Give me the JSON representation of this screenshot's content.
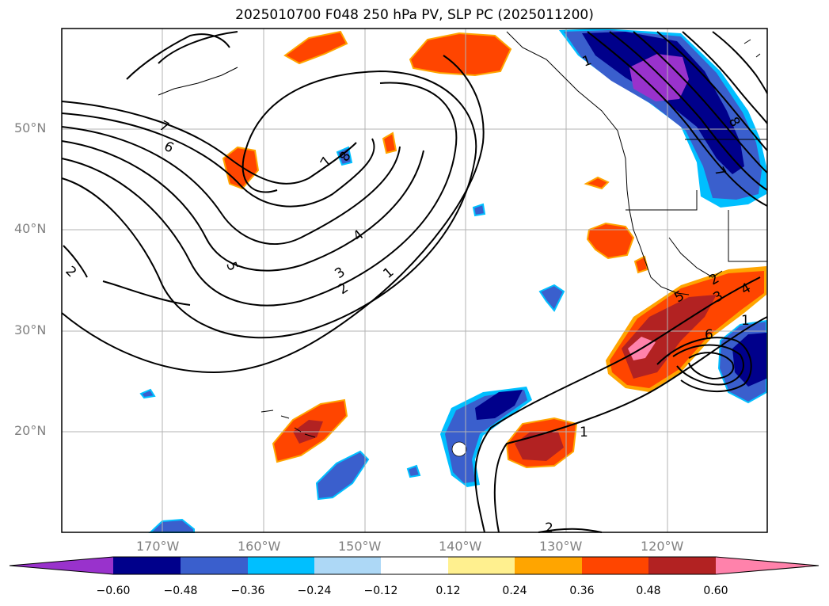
{
  "title": "2025010700 F048 250 hPa PV, SLP PC (2025011200)",
  "map": {
    "lat_labels": [
      "50°N",
      "40°N",
      "30°N",
      "20°N"
    ],
    "lon_labels": [
      "170°W",
      "160°W",
      "150°W",
      "140°W",
      "130°W",
      "120°W"
    ],
    "contour_labels": [
      "7",
      "6",
      "5",
      "4",
      "3",
      "2",
      "1",
      "8",
      "7",
      "2",
      "1",
      "2",
      "1",
      "8",
      "5",
      "4",
      "3",
      "2",
      "1",
      "6",
      "7"
    ]
  },
  "colorbar": {
    "ticks": [
      "−0.60",
      "−0.48",
      "−0.36",
      "−0.24",
      "−0.12",
      "0.12",
      "0.24",
      "0.36",
      "0.48",
      "0.60"
    ],
    "colors": [
      "#9932cc",
      "#00008b",
      "#3a5fcd",
      "#00bfff",
      "#add8f6",
      "#ffffff",
      "#fff08f",
      "#ffa500",
      "#ff4500",
      "#b22222",
      "#ff82ab"
    ]
  }
}
